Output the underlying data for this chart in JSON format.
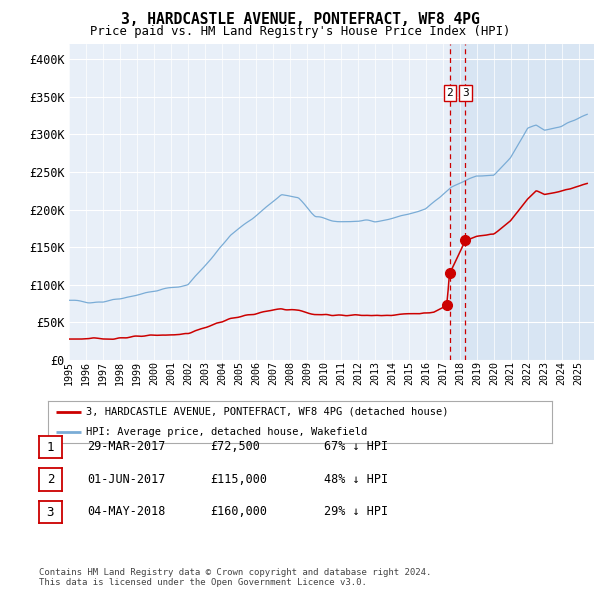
{
  "title": "3, HARDCASTLE AVENUE, PONTEFRACT, WF8 4PG",
  "subtitle": "Price paid vs. HM Land Registry's House Price Index (HPI)",
  "legend_red": "3, HARDCASTLE AVENUE, PONTEFRACT, WF8 4PG (detached house)",
  "legend_blue": "HPI: Average price, detached house, Wakefield",
  "table_rows": [
    {
      "num": "1",
      "date": "29-MAR-2017",
      "price": "£72,500",
      "pct": "67% ↓ HPI"
    },
    {
      "num": "2",
      "date": "01-JUN-2017",
      "price": "£115,000",
      "pct": "48% ↓ HPI"
    },
    {
      "num": "3",
      "date": "04-MAY-2018",
      "price": "£160,000",
      "pct": "29% ↓ HPI"
    }
  ],
  "footer": "Contains HM Land Registry data © Crown copyright and database right 2024.\nThis data is licensed under the Open Government Licence v3.0.",
  "bg_chart": "#e8eff8",
  "bg_right": "#d8e5f3",
  "grid_color": "#ffffff",
  "red_color": "#cc0000",
  "blue_color": "#7aacd6",
  "ylim": [
    0,
    420000
  ],
  "xlim_left": 1995.0,
  "xlim_right": 2025.9,
  "sale1_date": 2017.23,
  "sale1_price": 72500,
  "sale2_date": 2017.41,
  "sale2_price": 115000,
  "sale3_date": 2018.33,
  "sale3_price": 160000,
  "vline1_date": 2017.41,
  "vline2_date": 2018.33,
  "hpi_anchors_x": [
    1995.0,
    1997.0,
    2002.0,
    2004.5,
    2007.5,
    2008.5,
    2009.5,
    2010.5,
    2013.0,
    2016.0,
    2017.0,
    2017.5,
    2018.0,
    2019.0,
    2020.0,
    2021.0,
    2022.0,
    2022.5,
    2023.0,
    2024.0,
    2025.5
  ],
  "hpi_anchors_y": [
    78000,
    78000,
    100000,
    165000,
    220000,
    215000,
    190000,
    185000,
    183000,
    200000,
    222000,
    230000,
    235000,
    245000,
    245000,
    268000,
    308000,
    312000,
    306000,
    312000,
    326000
  ],
  "red_anchors_x": [
    1995.0,
    1997.0,
    2002.0,
    2004.5,
    2007.5,
    2008.5,
    2009.5,
    2010.5,
    2013.0,
    2016.5,
    2017.23,
    2017.41,
    2018.33,
    2019.0,
    2020.0,
    2021.0,
    2022.0,
    2022.5,
    2023.0,
    2024.0,
    2025.5
  ],
  "red_anchors_y": [
    28000,
    28000,
    35000,
    55000,
    68000,
    66000,
    60000,
    60000,
    59000,
    63000,
    72500,
    115000,
    160000,
    165000,
    167000,
    185000,
    215000,
    225000,
    220000,
    225000,
    235000
  ]
}
